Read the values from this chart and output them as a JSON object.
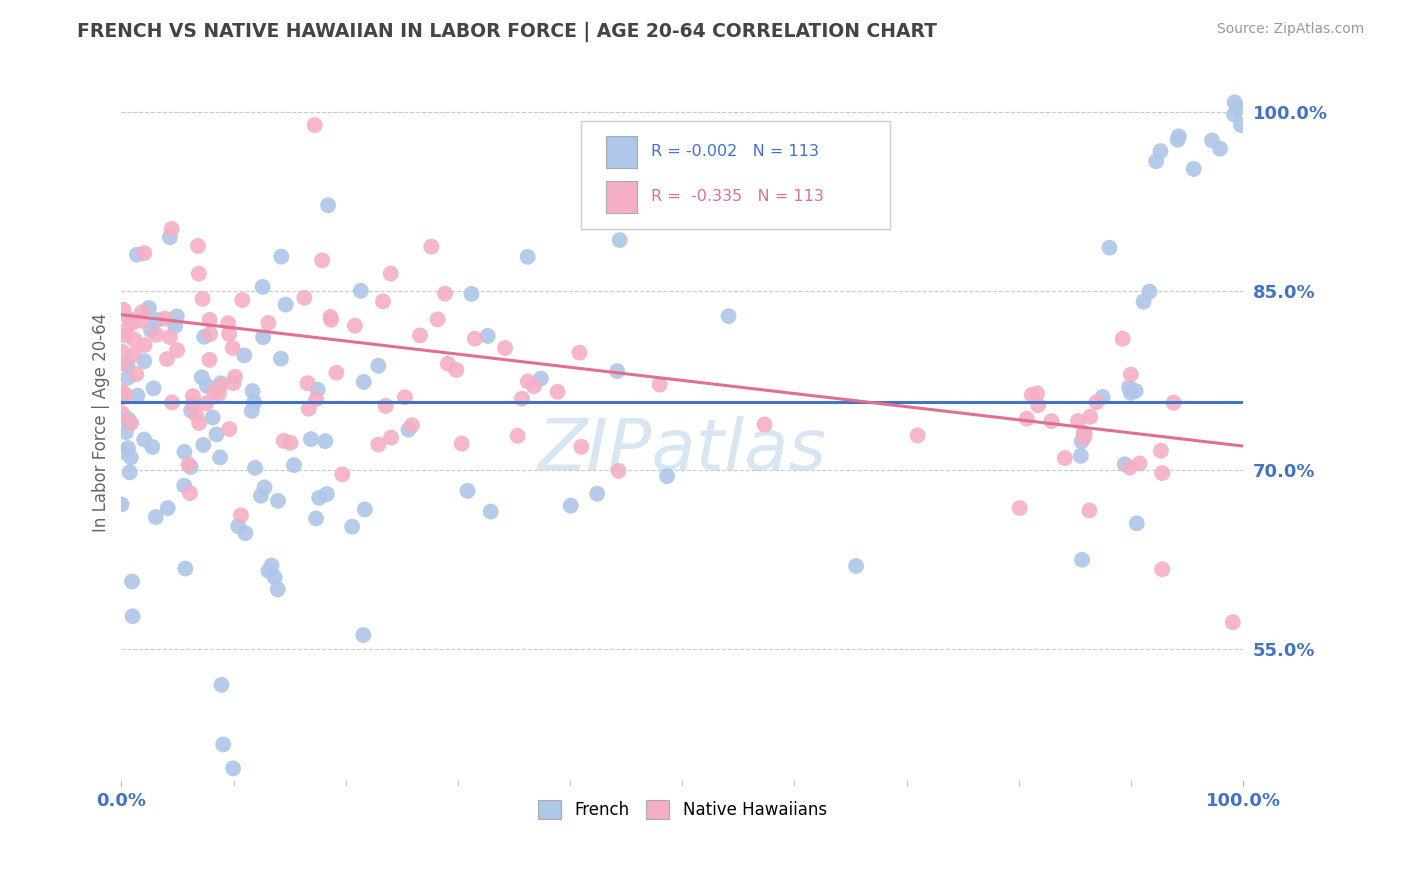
{
  "title": "FRENCH VS NATIVE HAWAIIAN IN LABOR FORCE | AGE 20-64 CORRELATION CHART",
  "source_text": "Source: ZipAtlas.com",
  "ylabel": "In Labor Force | Age 20-64",
  "xlim": [
    0.0,
    1.0
  ],
  "ylim": [
    0.44,
    1.04
  ],
  "ytick_labels": [
    "55.0%",
    "70.0%",
    "85.0%",
    "100.0%"
  ],
  "ytick_values": [
    0.55,
    0.7,
    0.85,
    1.0
  ],
  "french_color": "#aec6e8",
  "french_line_color": "#4472C4",
  "hawaiian_color": "#f4afc4",
  "hawaiian_line_color": "#e07090",
  "watermark_color": "#b8d0ea",
  "background_color": "#ffffff",
  "grid_color": "#cccccc",
  "title_color": "#444444",
  "axis_label_color": "#666666",
  "tick_label_color": "#4472C4",
  "french_R": -0.002,
  "french_N": 113,
  "hawaiian_R": -0.335,
  "hawaiian_N": 113,
  "french_line_y0": 0.757,
  "french_line_y1": 0.757,
  "hawaiian_line_y0": 0.83,
  "hawaiian_line_y1": 0.72
}
